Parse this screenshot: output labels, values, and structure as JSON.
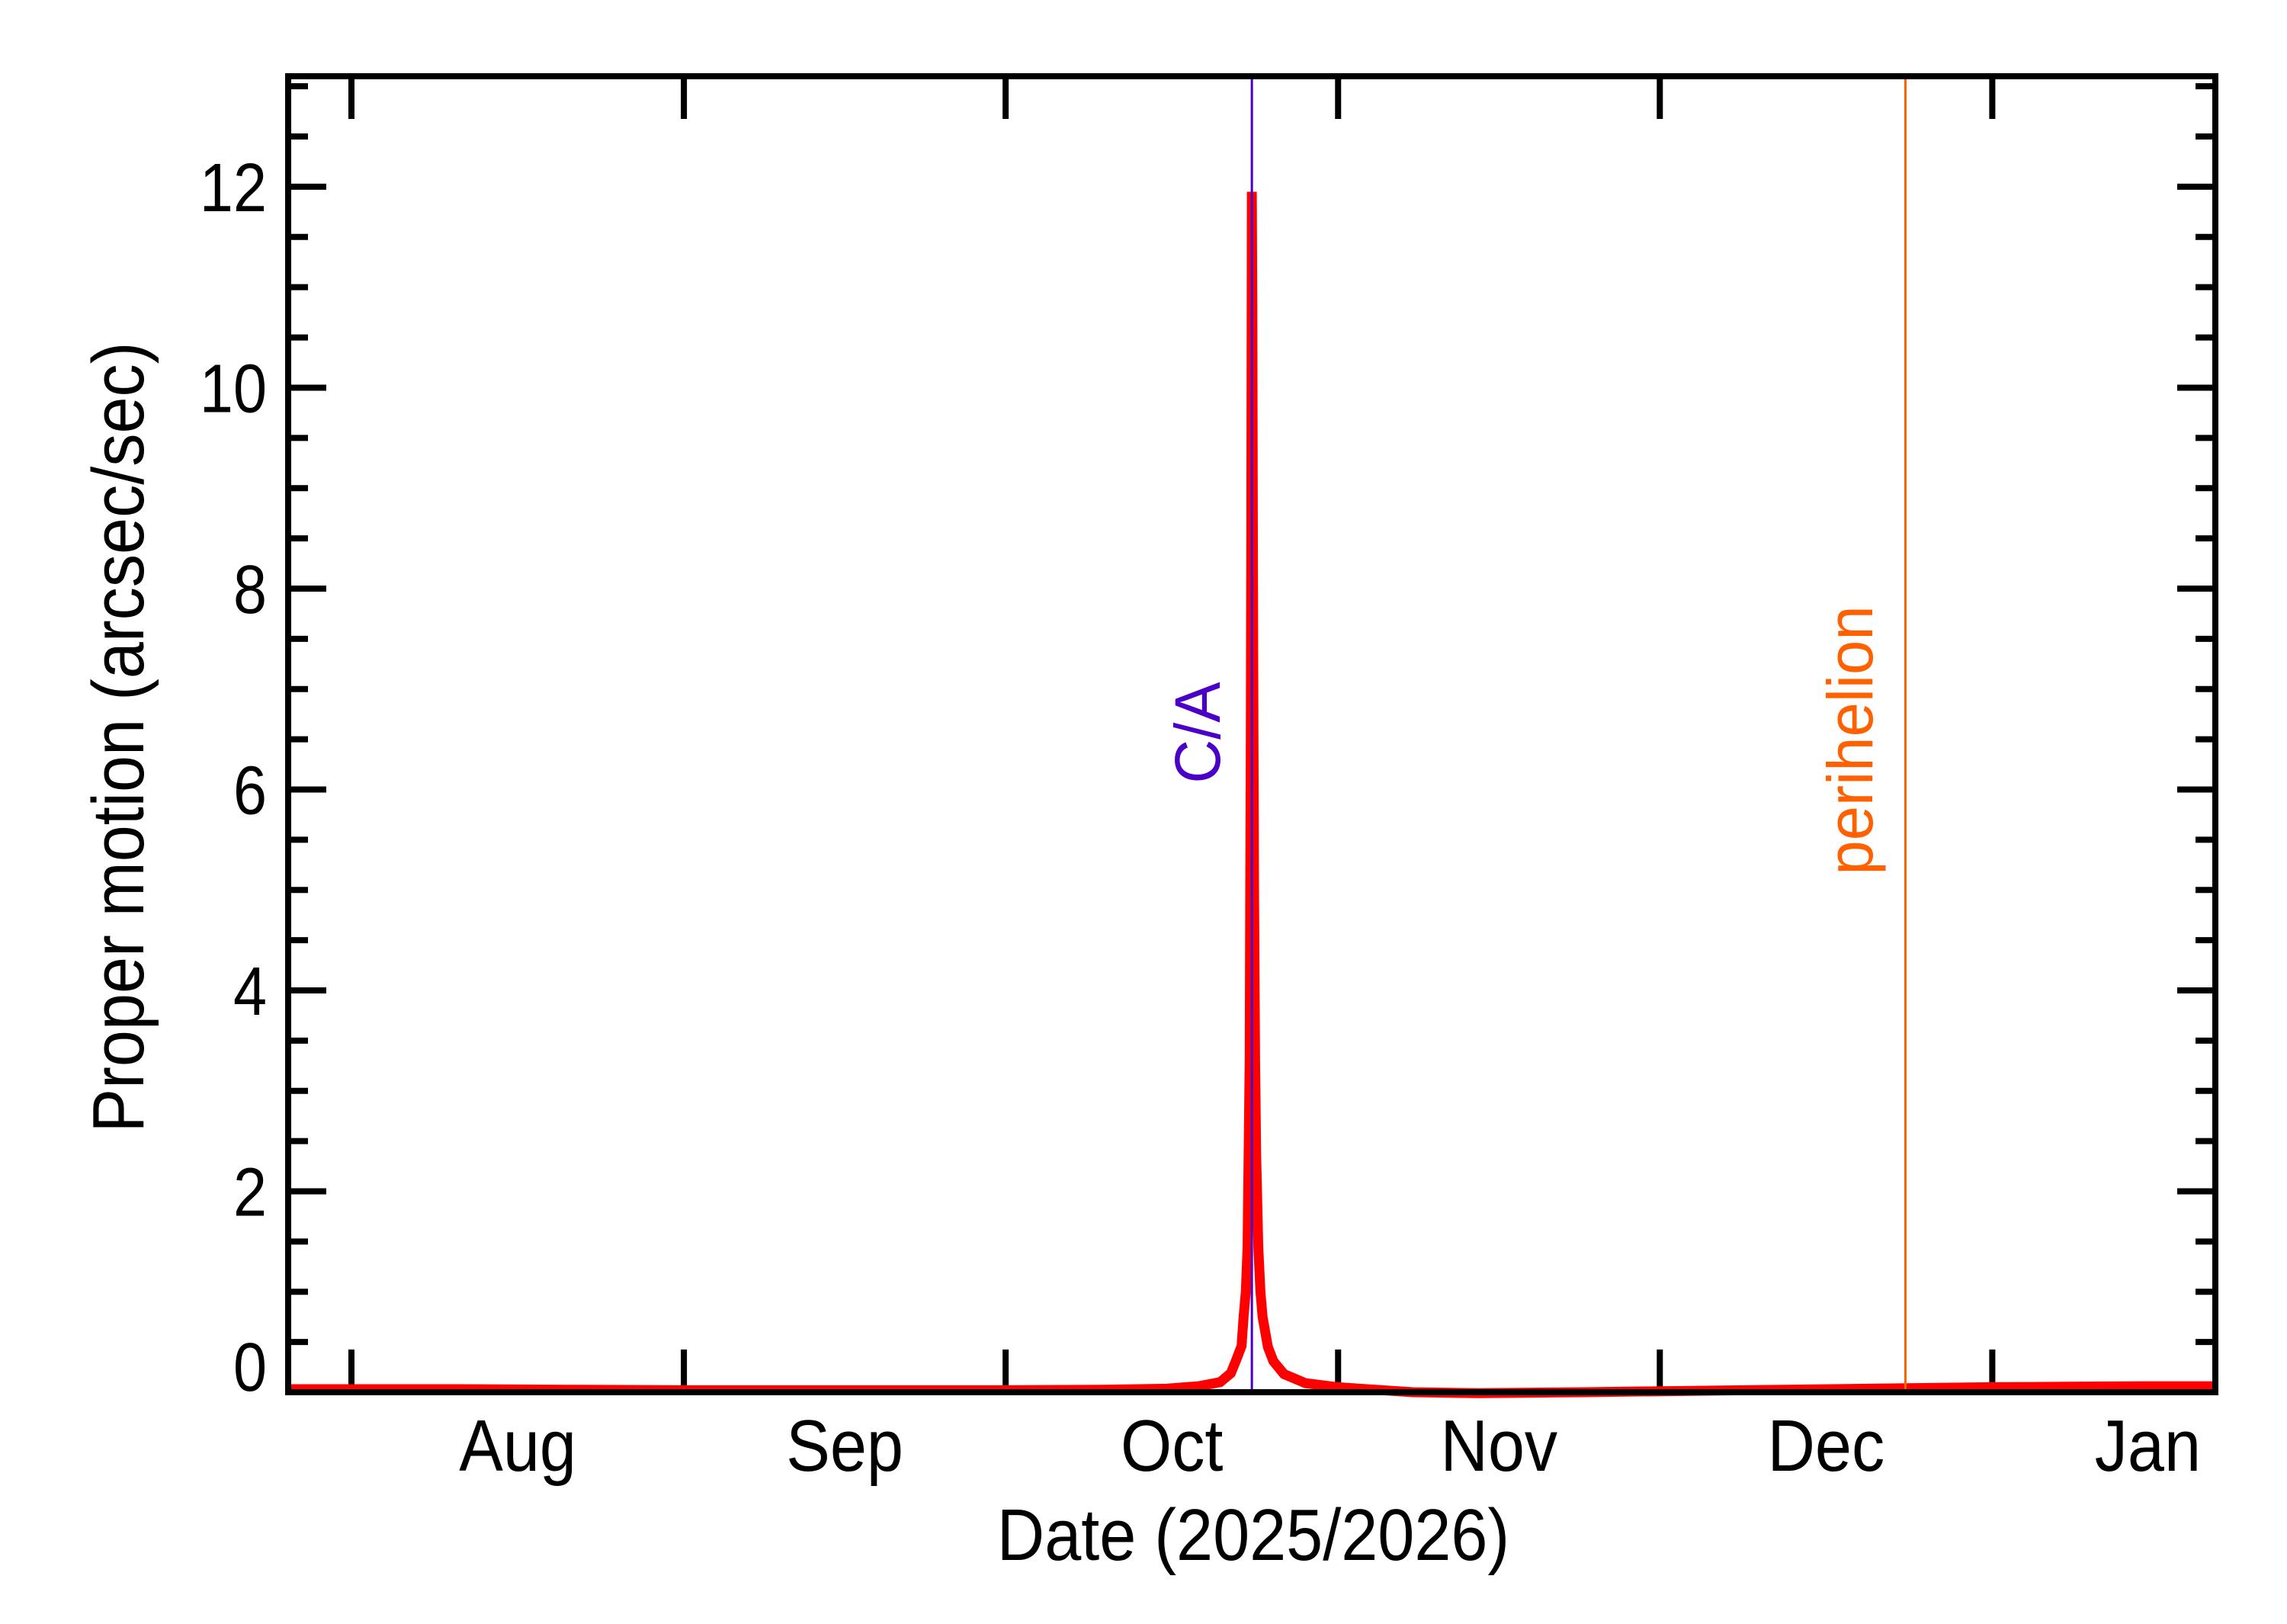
{
  "chart_data": {
    "type": "line",
    "title": "",
    "xlabel": "Date (2025/2026)",
    "ylabel": "Proper motion (arcsec/sec)",
    "x_units": "days since 2025-08-01",
    "xlim": [
      -5.9,
      173.8
    ],
    "ylim": [
      0,
      13.1
    ],
    "grid": false,
    "legend": null,
    "x_ticks": [
      {
        "x": 0,
        "label": ""
      },
      {
        "x": 31,
        "label": ""
      },
      {
        "x": 61,
        "label": ""
      },
      {
        "x": 92,
        "label": ""
      },
      {
        "x": 122,
        "label": ""
      },
      {
        "x": 153,
        "label": ""
      }
    ],
    "x_month_labels": [
      {
        "x": 15.5,
        "label": "Aug"
      },
      {
        "x": 46,
        "label": "Sep"
      },
      {
        "x": 76.5,
        "label": "Oct"
      },
      {
        "x": 107,
        "label": "Nov"
      },
      {
        "x": 137.5,
        "label": "Dec"
      },
      {
        "x": 167.5,
        "label": "Jan"
      }
    ],
    "y_major_ticks": [
      0,
      2,
      4,
      6,
      8,
      10,
      12
    ],
    "y_tick_labels": [
      "0",
      "2",
      "4",
      "6",
      "8",
      "10",
      "12"
    ],
    "y_minor_step": 0.5,
    "series": [
      {
        "name": "Proper motion",
        "color": "#FF0000",
        "x": [
          -5.9,
          0,
          10,
          20,
          31,
          40,
          50,
          61,
          70,
          76,
          79,
          81,
          82,
          82.5,
          83,
          83.2,
          83.4,
          83.56,
          83.66,
          83.76,
          83.81,
          83.86,
          83.91,
          83.96,
          84.01,
          84.06,
          84.11,
          84.16,
          84.26,
          84.36,
          84.56,
          84.76,
          84.96,
          85.46,
          85.96,
          86.96,
          88.96,
          91.96,
          98.96,
          105,
          115,
          122,
          130,
          138,
          145,
          153,
          160,
          167,
          173.8
        ],
        "y": [
          0.03,
          0.03,
          0.03,
          0.025,
          0.02,
          0.02,
          0.02,
          0.02,
          0.025,
          0.035,
          0.06,
          0.1,
          0.19,
          0.32,
          0.46,
          0.76,
          1.01,
          1.45,
          2.38,
          3.31,
          5.05,
          6.49,
          8.49,
          11.95,
          10.78,
          8.48,
          6.48,
          5.04,
          3.3,
          2.37,
          1.44,
          1.0,
          0.75,
          0.45,
          0.31,
          0.18,
          0.09,
          0.05,
          0.0,
          -0.01,
          0.0,
          0.01,
          0.02,
          0.03,
          0.04,
          0.05,
          0.055,
          0.06,
          0.06
        ]
      }
    ],
    "annotations": [
      {
        "type": "vline",
        "x": 83.96,
        "color": "#4B00C8",
        "label": "C/A",
        "date": "Oct 24"
      },
      {
        "type": "vline",
        "x": 144.9,
        "color": "#FF6000",
        "label": "perihelion",
        "date": "Dec 23"
      }
    ]
  },
  "labels": {
    "ca": "C/A",
    "perihelion": "perihelion",
    "xlabel": "Date (2025/2026)",
    "ylabel": "Proper motion (arcsec/sec)"
  },
  "colors": {
    "curve": "#FF0000",
    "ca_line": "#4B00C8",
    "perihelion_line": "#FF6000",
    "axes": "#000000",
    "background": "#FFFFFF"
  }
}
